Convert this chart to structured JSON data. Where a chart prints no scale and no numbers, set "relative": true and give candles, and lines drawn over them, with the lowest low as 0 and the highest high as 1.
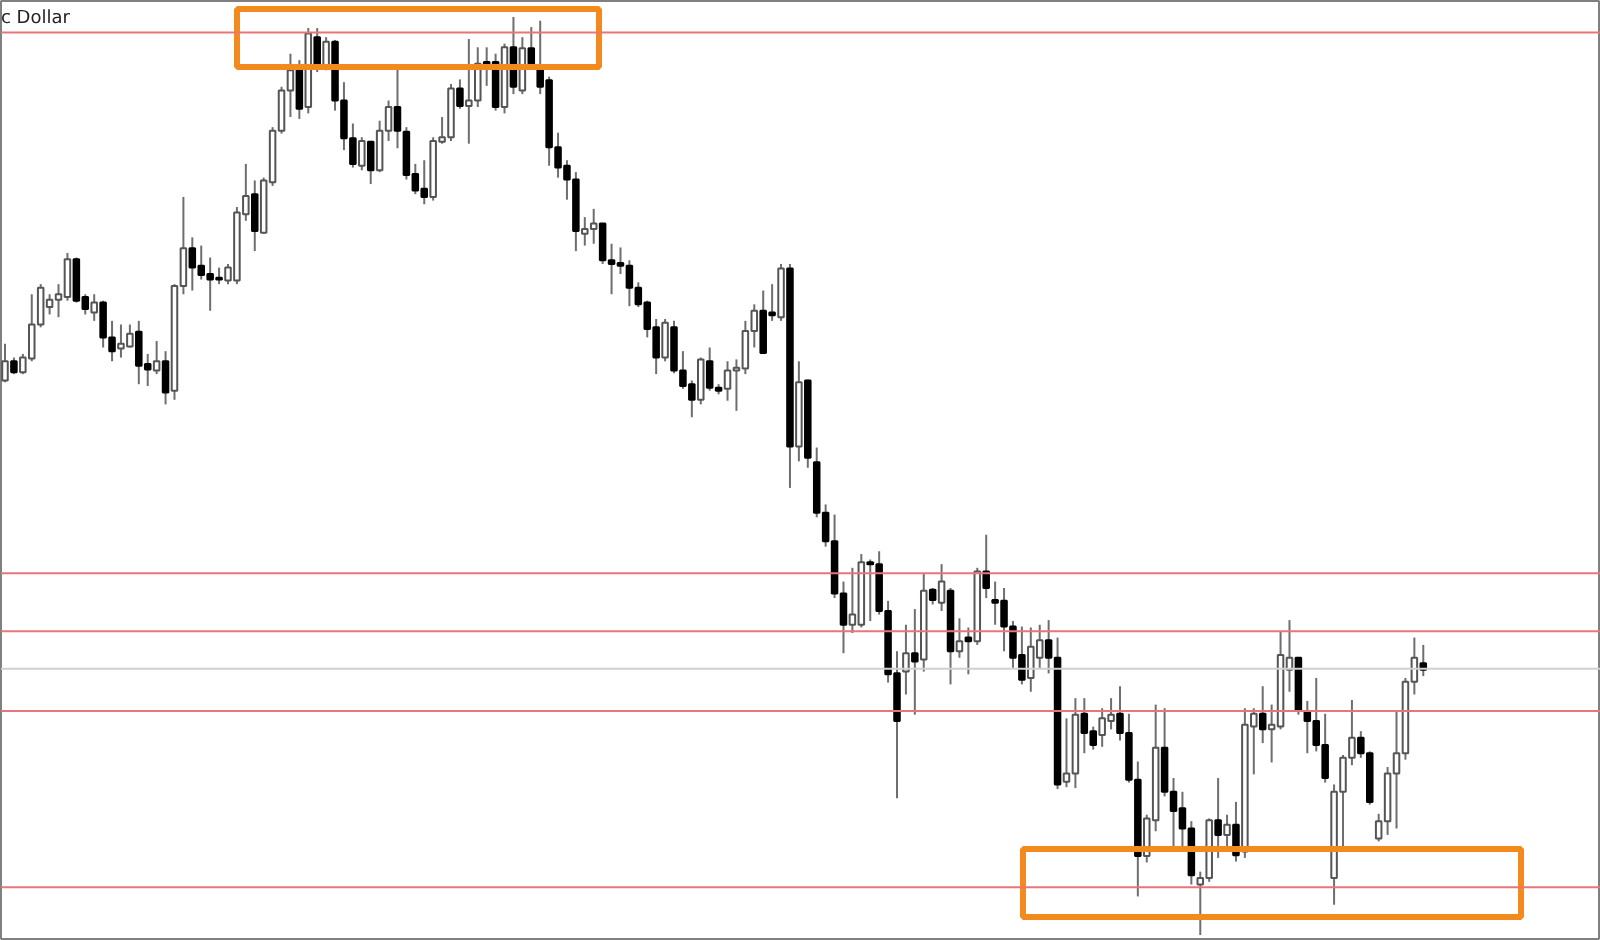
{
  "chart_data": {
    "type": "candlestick",
    "relative": true,
    "title": "c Dollar",
    "categories": [
      null,
      null,
      null,
      null,
      null,
      null,
      null,
      null,
      null,
      null,
      null,
      null,
      null,
      null,
      null,
      null,
      null,
      null,
      null,
      null,
      null,
      null,
      null,
      null,
      null,
      null,
      null,
      null,
      null,
      null,
      null,
      null,
      null,
      null,
      null,
      null,
      null,
      null,
      null,
      null,
      null,
      null,
      null,
      null,
      null,
      null,
      null,
      null,
      null,
      null,
      null,
      null,
      null,
      null,
      null,
      null,
      null,
      null,
      null,
      null,
      null,
      null,
      null,
      null,
      null,
      null,
      null,
      null,
      null,
      null,
      null,
      null,
      null,
      null,
      null,
      null,
      null,
      null,
      null,
      null,
      null,
      null,
      null,
      null,
      null,
      null,
      null,
      null,
      null,
      null,
      null,
      null,
      null,
      null,
      null,
      null,
      null,
      null,
      null,
      null,
      null,
      null,
      null,
      null,
      null,
      null,
      null,
      null,
      null,
      null,
      null,
      null,
      null,
      null,
      null,
      null,
      null,
      null,
      null,
      null,
      null,
      null,
      null,
      null,
      null,
      null,
      null,
      null,
      null,
      null,
      null,
      null,
      null,
      null,
      null,
      null,
      null,
      null,
      null,
      null,
      null,
      null,
      null,
      null,
      null,
      null,
      null,
      null,
      null,
      null,
      null,
      null,
      null,
      null,
      null,
      null,
      null,
      null,
      null,
      null
    ],
    "ohlc": [
      [
        0.604,
        0.644,
        0.602,
        0.625
      ],
      [
        0.625,
        0.629,
        0.611,
        0.613
      ],
      [
        0.613,
        0.633,
        0.611,
        0.629
      ],
      [
        0.628,
        0.698,
        0.625,
        0.665
      ],
      [
        0.665,
        0.709,
        0.662,
        0.705
      ],
      [
        0.684,
        0.698,
        0.676,
        0.692
      ],
      [
        0.692,
        0.709,
        0.673,
        0.698
      ],
      [
        0.695,
        0.743,
        0.691,
        0.736
      ],
      [
        0.736,
        0.738,
        0.689,
        0.691
      ],
      [
        0.695,
        0.698,
        0.676,
        0.682
      ],
      [
        0.678,
        0.698,
        0.669,
        0.689
      ],
      [
        0.689,
        0.691,
        0.64,
        0.651
      ],
      [
        0.651,
        0.669,
        0.625,
        0.636
      ],
      [
        0.639,
        0.665,
        0.629,
        0.644
      ],
      [
        0.641,
        0.665,
        0.64,
        0.655
      ],
      [
        0.657,
        0.669,
        0.6,
        0.62
      ],
      [
        0.622,
        0.633,
        0.598,
        0.616
      ],
      [
        0.615,
        0.647,
        0.611,
        0.625
      ],
      [
        0.625,
        0.636,
        0.578,
        0.591
      ],
      [
        0.593,
        0.709,
        0.583,
        0.707
      ],
      [
        0.707,
        0.804,
        0.698,
        0.748
      ],
      [
        0.748,
        0.76,
        0.702,
        0.727
      ],
      [
        0.729,
        0.751,
        0.714,
        0.719
      ],
      [
        0.72,
        0.738,
        0.68,
        0.714
      ],
      [
        0.716,
        0.727,
        0.709,
        0.714
      ],
      [
        0.713,
        0.731,
        0.709,
        0.727
      ],
      [
        0.713,
        0.793,
        0.709,
        0.787
      ],
      [
        0.785,
        0.84,
        0.778,
        0.805
      ],
      [
        0.807,
        0.822,
        0.745,
        0.767
      ],
      [
        0.765,
        0.825,
        0.764,
        0.822
      ],
      [
        0.82,
        0.88,
        0.816,
        0.876
      ],
      [
        0.876,
        0.924,
        0.873,
        0.92
      ],
      [
        0.92,
        0.96,
        0.891,
        0.942
      ],
      [
        0.942,
        0.953,
        0.889,
        0.9
      ],
      [
        0.902,
        0.988,
        0.895,
        0.982
      ],
      [
        0.978,
        0.988,
        0.94,
        0.949
      ],
      [
        0.947,
        0.978,
        0.942,
        0.973
      ],
      [
        0.973,
        0.975,
        0.898,
        0.909
      ],
      [
        0.909,
        0.929,
        0.855,
        0.868
      ],
      [
        0.868,
        0.884,
        0.836,
        0.84
      ],
      [
        0.838,
        0.869,
        0.833,
        0.865
      ],
      [
        0.864,
        0.865,
        0.818,
        0.833
      ],
      [
        0.833,
        0.887,
        0.831,
        0.876
      ],
      [
        0.876,
        0.909,
        0.865,
        0.902
      ],
      [
        0.902,
        0.945,
        0.857,
        0.876
      ],
      [
        0.875,
        0.88,
        0.823,
        0.828
      ],
      [
        0.829,
        0.84,
        0.807,
        0.811
      ],
      [
        0.813,
        0.844,
        0.796,
        0.804
      ],
      [
        0.804,
        0.869,
        0.8,
        0.865
      ],
      [
        0.864,
        0.891,
        0.862,
        0.869
      ],
      [
        0.869,
        0.927,
        0.865,
        0.922
      ],
      [
        0.922,
        0.932,
        0.9,
        0.903
      ],
      [
        0.903,
        0.976,
        0.862,
        0.909
      ],
      [
        0.909,
        0.967,
        0.902,
        0.949
      ],
      [
        0.951,
        0.967,
        0.925,
        0.945
      ],
      [
        0.951,
        0.96,
        0.898,
        0.902
      ],
      [
        0.902,
        0.971,
        0.895,
        0.967
      ],
      [
        0.967,
        1.0,
        0.916,
        0.924
      ],
      [
        0.92,
        0.978,
        0.916,
        0.966
      ],
      [
        0.966,
        0.989,
        0.945,
        0.949
      ],
      [
        0.945,
        0.996,
        0.916,
        0.924
      ],
      [
        0.931,
        0.935,
        0.838,
        0.858
      ],
      [
        0.858,
        0.874,
        0.825,
        0.836
      ],
      [
        0.838,
        0.844,
        0.801,
        0.823
      ],
      [
        0.823,
        0.831,
        0.745,
        0.767
      ],
      [
        0.764,
        0.782,
        0.751,
        0.769
      ],
      [
        0.769,
        0.791,
        0.753,
        0.775
      ],
      [
        0.775,
        0.775,
        0.731,
        0.735
      ],
      [
        0.735,
        0.753,
        0.698,
        0.731
      ],
      [
        0.732,
        0.749,
        0.72,
        0.729
      ],
      [
        0.729,
        0.735,
        0.685,
        0.705
      ],
      [
        0.705,
        0.711,
        0.684,
        0.687
      ],
      [
        0.689,
        0.691,
        0.651,
        0.66
      ],
      [
        0.662,
        0.671,
        0.611,
        0.629
      ],
      [
        0.629,
        0.671,
        0.625,
        0.667
      ],
      [
        0.662,
        0.669,
        0.612,
        0.615
      ],
      [
        0.615,
        0.636,
        0.595,
        0.598
      ],
      [
        0.6,
        0.604,
        0.564,
        0.583
      ],
      [
        0.583,
        0.629,
        0.578,
        0.627
      ],
      [
        0.625,
        0.64,
        0.593,
        0.596
      ],
      [
        0.596,
        0.6,
        0.589,
        0.593
      ],
      [
        0.595,
        0.625,
        0.582,
        0.615
      ],
      [
        0.615,
        0.627,
        0.571,
        0.618
      ],
      [
        0.617,
        0.669,
        0.611,
        0.658
      ],
      [
        0.658,
        0.687,
        0.64,
        0.68
      ],
      [
        0.68,
        0.702,
        0.633,
        0.634
      ],
      [
        0.678,
        0.709,
        0.669,
        0.675
      ],
      [
        0.673,
        0.731,
        0.669,
        0.726
      ],
      [
        0.726,
        0.731,
        0.487,
        0.532
      ],
      [
        0.532,
        0.625,
        0.516,
        0.602
      ],
      [
        0.604,
        0.605,
        0.509,
        0.52
      ],
      [
        0.515,
        0.531,
        0.455,
        0.46
      ],
      [
        0.46,
        0.469,
        0.423,
        0.429
      ],
      [
        0.429,
        0.458,
        0.367,
        0.372
      ],
      [
        0.372,
        0.385,
        0.307,
        0.338
      ],
      [
        0.338,
        0.4,
        0.329,
        0.349
      ],
      [
        0.338,
        0.415,
        0.335,
        0.406
      ],
      [
        0.406,
        0.409,
        0.342,
        0.404
      ],
      [
        0.404,
        0.418,
        0.349,
        0.353
      ],
      [
        0.353,
        0.364,
        0.275,
        0.284
      ],
      [
        0.285,
        0.309,
        0.149,
        0.233
      ],
      [
        0.287,
        0.338,
        0.262,
        0.307
      ],
      [
        0.307,
        0.355,
        0.24,
        0.298
      ],
      [
        0.3,
        0.394,
        0.287,
        0.375
      ],
      [
        0.376,
        0.378,
        0.36,
        0.365
      ],
      [
        0.362,
        0.404,
        0.353,
        0.385
      ],
      [
        0.375,
        0.378,
        0.273,
        0.309
      ],
      [
        0.309,
        0.345,
        0.302,
        0.32
      ],
      [
        0.324,
        0.335,
        0.284,
        0.32
      ],
      [
        0.32,
        0.4,
        0.316,
        0.396
      ],
      [
        0.396,
        0.436,
        0.367,
        0.378
      ],
      [
        0.365,
        0.385,
        0.338,
        0.362
      ],
      [
        0.364,
        0.378,
        0.309,
        0.336
      ],
      [
        0.336,
        0.342,
        0.291,
        0.302
      ],
      [
        0.305,
        0.336,
        0.273,
        0.278
      ],
      [
        0.28,
        0.335,
        0.265,
        0.314
      ],
      [
        0.302,
        0.338,
        0.291,
        0.321
      ],
      [
        0.321,
        0.343,
        0.285,
        0.302
      ],
      [
        0.302,
        0.324,
        0.159,
        0.164
      ],
      [
        0.167,
        0.236,
        0.161,
        0.176
      ],
      [
        0.176,
        0.258,
        0.16,
        0.24
      ],
      [
        0.241,
        0.258,
        0.198,
        0.22
      ],
      [
        0.222,
        0.227,
        0.202,
        0.207
      ],
      [
        0.218,
        0.247,
        0.205,
        0.236
      ],
      [
        0.233,
        0.258,
        0.224,
        0.24
      ],
      [
        0.241,
        0.271,
        0.212,
        0.22
      ],
      [
        0.22,
        0.241,
        0.166,
        0.169
      ],
      [
        0.169,
        0.189,
        0.042,
        0.086
      ],
      [
        0.086,
        0.131,
        0.079,
        0.127
      ],
      [
        0.125,
        0.251,
        0.113,
        0.204
      ],
      [
        0.204,
        0.247,
        0.151,
        0.156
      ],
      [
        0.156,
        0.171,
        0.093,
        0.135
      ],
      [
        0.138,
        0.156,
        0.095,
        0.116
      ],
      [
        0.116,
        0.124,
        0.055,
        0.065
      ],
      [
        0.055,
        0.069,
        0.0,
        0.062
      ],
      [
        0.062,
        0.127,
        0.058,
        0.125
      ],
      [
        0.125,
        0.171,
        0.084,
        0.109
      ],
      [
        0.109,
        0.131,
        0.091,
        0.12
      ],
      [
        0.12,
        0.145,
        0.08,
        0.087
      ],
      [
        0.091,
        0.247,
        0.084,
        0.229
      ],
      [
        0.227,
        0.247,
        0.175,
        0.241
      ],
      [
        0.241,
        0.271,
        0.209,
        0.224
      ],
      [
        0.224,
        0.251,
        0.188,
        0.229
      ],
      [
        0.227,
        0.331,
        0.224,
        0.305
      ],
      [
        0.289,
        0.343,
        0.265,
        0.302
      ],
      [
        0.302,
        0.302,
        0.24,
        0.244
      ],
      [
        0.244,
        0.255,
        0.198,
        0.233
      ],
      [
        0.233,
        0.28,
        0.2,
        0.207
      ],
      [
        0.207,
        0.241,
        0.166,
        0.171
      ],
      [
        0.062,
        0.164,
        0.033,
        0.156
      ],
      [
        0.156,
        0.196,
        0.095,
        0.193
      ],
      [
        0.193,
        0.256,
        0.185,
        0.215
      ],
      [
        0.215,
        0.222,
        0.193,
        0.198
      ],
      [
        0.198,
        0.2,
        0.142,
        0.145
      ],
      [
        0.105,
        0.132,
        0.102,
        0.124
      ],
      [
        0.124,
        0.183,
        0.109,
        0.176
      ],
      [
        0.176,
        0.244,
        0.116,
        0.198
      ],
      [
        0.198,
        0.28,
        0.191,
        0.276
      ],
      [
        0.276,
        0.324,
        0.262,
        0.302
      ],
      [
        0.296,
        0.316,
        0.282,
        0.289
      ]
    ],
    "ref_lines": [
      {
        "axis": "y",
        "value": 0.983,
        "color": "#e8747c"
      },
      {
        "axis": "y",
        "value": 0.394,
        "color": "#e8747c"
      },
      {
        "axis": "y",
        "value": 0.331,
        "color": "#e8747c"
      },
      {
        "axis": "y",
        "value": 0.29,
        "color": "#d0d0d0"
      },
      {
        "axis": "y",
        "value": 0.244,
        "color": "#e8747c"
      },
      {
        "axis": "y",
        "value": 0.052,
        "color": "#e8747c"
      }
    ]
  }
}
